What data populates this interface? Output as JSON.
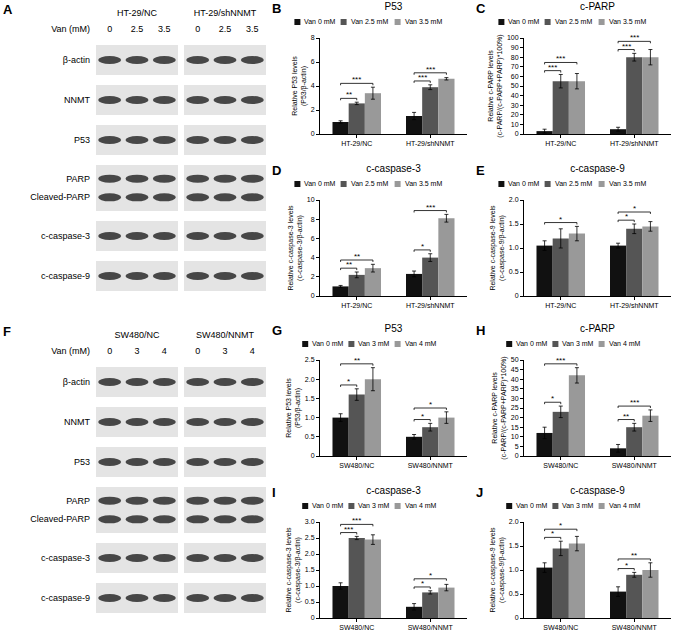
{
  "blots": [
    {
      "panel": "A",
      "van_label": "Van (mM)",
      "groups": [
        {
          "name": "HT-29/NC",
          "doses": [
            "0",
            "2.5",
            "3.5"
          ]
        },
        {
          "name": "HT-29/shNNMT",
          "doses": [
            "0",
            "2.5",
            "3.5"
          ]
        }
      ],
      "rows": [
        {
          "labels": [
            "β-actin"
          ]
        },
        {
          "labels": [
            "NNMT"
          ]
        },
        {
          "labels": [
            "P53"
          ]
        },
        {
          "labels": [
            "PARP",
            "Cleaved-PARP"
          ]
        },
        {
          "labels": [
            "c-caspase-3"
          ]
        },
        {
          "labels": [
            "c-caspase-9"
          ]
        }
      ]
    },
    {
      "panel": "F",
      "van_label": "Van (mM)",
      "groups": [
        {
          "name": "SW480/NC",
          "doses": [
            "0",
            "3",
            "4"
          ]
        },
        {
          "name": "SW480/NNMT",
          "doses": [
            "0",
            "3",
            "4"
          ]
        }
      ],
      "rows": [
        {
          "labels": [
            "β-actin"
          ]
        },
        {
          "labels": [
            "NNMT"
          ]
        },
        {
          "labels": [
            "P53"
          ]
        },
        {
          "labels": [
            "PARP",
            "Cleaved-PARP"
          ]
        },
        {
          "labels": [
            "c-caspase-3"
          ]
        },
        {
          "labels": [
            "c-caspase-9"
          ]
        }
      ]
    }
  ],
  "chart_data": [
    {
      "panel": "B",
      "type": "bar",
      "title": "P53",
      "y_label": "Relative P53 levels (P53/β-actin)",
      "categories": [
        "HT-29/NC",
        "HT-29/shNNMT"
      ],
      "series": [
        {
          "name": "Van 0 mM",
          "color": "#111111",
          "values": [
            1.0,
            1.5
          ],
          "errors": [
            0.1,
            0.3
          ]
        },
        {
          "name": "Van 2.5 mM",
          "color": "#555555",
          "values": [
            2.55,
            3.9
          ],
          "errors": [
            0.1,
            0.2
          ]
        },
        {
          "name": "Van 3.5 mM",
          "color": "#999999",
          "values": [
            3.4,
            4.6
          ],
          "errors": [
            0.5,
            0.1
          ]
        }
      ],
      "ylim": [
        0,
        8
      ],
      "yticks": [
        0,
        2,
        4,
        6,
        8
      ],
      "significance": [
        {
          "category": "HT-29/NC",
          "from": "Van 0 mM",
          "to": "Van 2.5 mM",
          "label": "**"
        },
        {
          "category": "HT-29/NC",
          "from": "Van 0 mM",
          "to": "Van 3.5 mM",
          "label": "***"
        },
        {
          "category": "HT-29/shNNMT",
          "from": "Van 0 mM",
          "to": "Van 2.5 mM",
          "label": "***"
        },
        {
          "category": "HT-29/shNNMT",
          "from": "Van 0 mM",
          "to": "Van 3.5 mM",
          "label": "***"
        }
      ]
    },
    {
      "panel": "C",
      "type": "bar",
      "title": "c-PARP",
      "y_label": "Relative c-PARP levels (c-PARP/(c-PARP+PARP)*100%)",
      "categories": [
        "HT-29/NC",
        "HT-29/shNNMT"
      ],
      "series": [
        {
          "name": "Van 0 mM",
          "color": "#111111",
          "values": [
            3,
            5
          ],
          "errors": [
            2,
            2
          ]
        },
        {
          "name": "Van 2.5 mM",
          "color": "#555555",
          "values": [
            55,
            80
          ],
          "errors": [
            7,
            4
          ]
        },
        {
          "name": "Van 3.5 mM",
          "color": "#999999",
          "values": [
            55,
            80
          ],
          "errors": [
            8,
            8
          ]
        }
      ],
      "ylim": [
        0,
        100
      ],
      "yticks": [
        0,
        10,
        20,
        30,
        40,
        50,
        60,
        70,
        80,
        90,
        100
      ],
      "significance": [
        {
          "category": "HT-29/NC",
          "from": "Van 0 mM",
          "to": "Van 2.5 mM",
          "label": "***"
        },
        {
          "category": "HT-29/NC",
          "from": "Van 0 mM",
          "to": "Van 3.5 mM",
          "label": "***"
        },
        {
          "category": "HT-29/shNNMT",
          "from": "Van 0 mM",
          "to": "Van 2.5 mM",
          "label": "***"
        },
        {
          "category": "HT-29/shNNMT",
          "from": "Van 0 mM",
          "to": "Van 3.5 mM",
          "label": "***"
        }
      ]
    },
    {
      "panel": "D",
      "type": "bar",
      "title": "c-caspase-3",
      "y_label": "Relative c-caspase-3 levels (c-caspase-3/β-actin)",
      "categories": [
        "HT-29/NC",
        "HT-29/shNNMT"
      ],
      "series": [
        {
          "name": "Van 0 mM",
          "color": "#111111",
          "values": [
            1.0,
            2.3
          ],
          "errors": [
            0.1,
            0.3
          ]
        },
        {
          "name": "Van 2.5 mM",
          "color": "#555555",
          "values": [
            2.2,
            4.0
          ],
          "errors": [
            0.3,
            0.4
          ]
        },
        {
          "name": "Van 3.5 mM",
          "color": "#999999",
          "values": [
            2.9,
            8.1
          ],
          "errors": [
            0.4,
            0.4
          ]
        }
      ],
      "ylim": [
        0,
        10
      ],
      "yticks": [
        0,
        2,
        4,
        6,
        8,
        10
      ],
      "significance": [
        {
          "category": "HT-29/NC",
          "from": "Van 0 mM",
          "to": "Van 2.5 mM",
          "label": "**"
        },
        {
          "category": "HT-29/NC",
          "from": "Van 0 mM",
          "to": "Van 3.5 mM",
          "label": "**"
        },
        {
          "category": "HT-29/shNNMT",
          "from": "Van 0 mM",
          "to": "Van 2.5 mM",
          "label": "*"
        },
        {
          "category": "HT-29/shNNMT",
          "from": "Van 0 mM",
          "to": "Van 3.5 mM",
          "label": "***"
        }
      ]
    },
    {
      "panel": "E",
      "type": "bar",
      "title": "c-caspase-9",
      "y_label": "Relative c-caspase-9 levels (c-caspase-9/β-actin)",
      "categories": [
        "HT-29/NC",
        "HT-29/shNNMT"
      ],
      "series": [
        {
          "name": "Van 0 mM",
          "color": "#111111",
          "values": [
            1.05,
            1.05
          ],
          "errors": [
            0.1,
            0.05
          ]
        },
        {
          "name": "Van 2.5 mM",
          "color": "#555555",
          "values": [
            1.2,
            1.4
          ],
          "errors": [
            0.2,
            0.1
          ]
        },
        {
          "name": "Van 3.5 mM",
          "color": "#999999",
          "values": [
            1.3,
            1.45
          ],
          "errors": [
            0.15,
            0.1
          ]
        }
      ],
      "ylim": [
        0,
        2
      ],
      "yticks": [
        0,
        0.5,
        {
          "value": 1,
          "label": "1.0"
        },
        1.5,
        {
          "value": 2,
          "label": "2.0"
        }
      ],
      "significance": [
        {
          "category": "HT-29/NC",
          "from": "Van 0 mM",
          "to": "Van 3.5 mM",
          "label": "*"
        },
        {
          "category": "HT-29/shNNMT",
          "from": "Van 0 mM",
          "to": "Van 2.5 mM",
          "label": "*"
        },
        {
          "category": "HT-29/shNNMT",
          "from": "Van 0 mM",
          "to": "Van 3.5 mM",
          "label": "*"
        }
      ]
    },
    {
      "panel": "G",
      "type": "bar",
      "title": "P53",
      "y_label": "Relative P53 levels (P53/β-actin)",
      "categories": [
        "SW480/NC",
        "SW480/NNMT"
      ],
      "series": [
        {
          "name": "Van 0 mM",
          "color": "#111111",
          "values": [
            1.0,
            0.5
          ],
          "errors": [
            0.1,
            0.06
          ]
        },
        {
          "name": "Van 3 mM",
          "color": "#555555",
          "values": [
            1.6,
            0.75
          ],
          "errors": [
            0.15,
            0.1
          ]
        },
        {
          "name": "Van 4 mM",
          "color": "#999999",
          "values": [
            2.0,
            1.0
          ],
          "errors": [
            0.3,
            0.15
          ]
        }
      ],
      "ylim": [
        0,
        2.5
      ],
      "yticks": [
        0,
        0.5,
        {
          "value": 1,
          "label": "1.0"
        },
        1.5,
        {
          "value": 2,
          "label": "2.0"
        },
        2.5
      ],
      "significance": [
        {
          "category": "SW480/NC",
          "from": "Van 0 mM",
          "to": "Van 3 mM",
          "label": "*"
        },
        {
          "category": "SW480/NC",
          "from": "Van 0 mM",
          "to": "Van 4 mM",
          "label": "**"
        },
        {
          "category": "SW480/NNMT",
          "from": "Van 0 mM",
          "to": "Van 3 mM",
          "label": "*"
        },
        {
          "category": "SW480/NNMT",
          "from": "Van 0 mM",
          "to": "Van 4 mM",
          "label": "*"
        }
      ]
    },
    {
      "panel": "H",
      "type": "bar",
      "title": "c-PARP",
      "y_label": "Relative c-PARP levels (c-PARP/(c-PARP+PARP)*100%)",
      "categories": [
        "SW480/NC",
        "SW480/NNMT"
      ],
      "series": [
        {
          "name": "Van 0 mM",
          "color": "#111111",
          "values": [
            12,
            4
          ],
          "errors": [
            3,
            2
          ]
        },
        {
          "name": "Van 3 mM",
          "color": "#555555",
          "values": [
            23,
            15
          ],
          "errors": [
            3,
            2
          ]
        },
        {
          "name": "Van 4 mM",
          "color": "#999999",
          "values": [
            42,
            21
          ],
          "errors": [
            4,
            3
          ]
        }
      ],
      "ylim": [
        0,
        50
      ],
      "yticks": [
        0,
        5,
        10,
        15,
        20,
        25,
        30,
        35,
        40,
        45,
        50
      ],
      "significance": [
        {
          "category": "SW480/NC",
          "from": "Van 0 mM",
          "to": "Van 3 mM",
          "label": "*"
        },
        {
          "category": "SW480/NC",
          "from": "Van 0 mM",
          "to": "Van 4 mM",
          "label": "***"
        },
        {
          "category": "SW480/NNMT",
          "from": "Van 0 mM",
          "to": "Van 3 mM",
          "label": "**"
        },
        {
          "category": "SW480/NNMT",
          "from": "Van 0 mM",
          "to": "Van 4 mM",
          "label": "***"
        }
      ]
    },
    {
      "panel": "I",
      "type": "bar",
      "title": "c-caspase-3",
      "y_label": "Relative c-caspase-3 levels (c-caspase-3/β-actin)",
      "categories": [
        "SW480/NC",
        "SW480/NNMT"
      ],
      "series": [
        {
          "name": "Van 0 mM",
          "color": "#111111",
          "values": [
            1.0,
            0.35
          ],
          "errors": [
            0.1,
            0.1
          ]
        },
        {
          "name": "Van 3 mM",
          "color": "#555555",
          "values": [
            2.5,
            0.8
          ],
          "errors": [
            0.05,
            0.05
          ]
        },
        {
          "name": "Van 4 mM",
          "color": "#999999",
          "values": [
            2.45,
            0.95
          ],
          "errors": [
            0.15,
            0.1
          ]
        }
      ],
      "ylim": [
        0,
        3
      ],
      "yticks": [
        0,
        0.5,
        {
          "value": 1,
          "label": "1.0"
        },
        1.5,
        {
          "value": 2,
          "label": "2.0"
        },
        2.5,
        {
          "value": 3,
          "label": "3.0"
        }
      ],
      "significance": [
        {
          "category": "SW480/NC",
          "from": "Van 0 mM",
          "to": "Van 3 mM",
          "label": "***"
        },
        {
          "category": "SW480/NC",
          "from": "Van 0 mM",
          "to": "Van 4 mM",
          "label": "***"
        },
        {
          "category": "SW480/NNMT",
          "from": "Van 0 mM",
          "to": "Van 3 mM",
          "label": "*"
        },
        {
          "category": "SW480/NNMT",
          "from": "Van 0 mM",
          "to": "Van 4 mM",
          "label": "*"
        }
      ]
    },
    {
      "panel": "J",
      "type": "bar",
      "title": "c-caspase-9",
      "y_label": "Relative c-caspase-9 levels (c-caspase-9/β-actin)",
      "categories": [
        "SW480/NC",
        "SW480/NNMT"
      ],
      "series": [
        {
          "name": "Van 0 mM",
          "color": "#111111",
          "values": [
            1.05,
            0.55
          ],
          "errors": [
            0.1,
            0.1
          ]
        },
        {
          "name": "Van 3 mM",
          "color": "#555555",
          "values": [
            1.45,
            0.9
          ],
          "errors": [
            0.15,
            0.05
          ]
        },
        {
          "name": "Van 4 mM",
          "color": "#999999",
          "values": [
            1.55,
            1.0
          ],
          "errors": [
            0.15,
            0.15
          ]
        }
      ],
      "ylim": [
        0,
        2
      ],
      "yticks": [
        0,
        0.5,
        {
          "value": 1,
          "label": "1.0"
        },
        1.5,
        {
          "value": 2,
          "label": "2.0"
        }
      ],
      "significance": [
        {
          "category": "SW480/NC",
          "from": "Van 0 mM",
          "to": "Van 3 mM",
          "label": "*"
        },
        {
          "category": "SW480/NC",
          "from": "Van 0 mM",
          "to": "Van 4 mM",
          "label": "*"
        },
        {
          "category": "SW480/NNMT",
          "from": "Van 0 mM",
          "to": "Van 3 mM",
          "label": "*"
        },
        {
          "category": "SW480/NNMT",
          "from": "Van 0 mM",
          "to": "Van 4 mM",
          "label": "**"
        }
      ]
    }
  ]
}
